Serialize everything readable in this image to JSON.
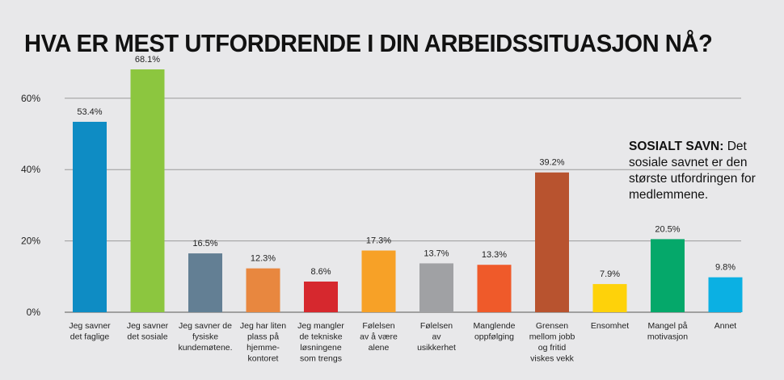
{
  "chart_data": {
    "type": "bar",
    "title": "HVA ER MEST UTFORDRENDE I DIN ARBEIDSSITUASJON NÅ?",
    "xlabel": "",
    "ylabel": "",
    "ylim": [
      0,
      70
    ],
    "yticks": [
      0,
      20,
      40,
      60
    ],
    "ytick_labels": [
      "0%",
      "20%",
      "40%",
      "60%"
    ],
    "grid": true,
    "categories": [
      [
        "Jeg savner",
        "det faglige"
      ],
      [
        "Jeg savner",
        "det sosiale"
      ],
      [
        "Jeg savner de",
        "fysiske",
        "kundemøtene."
      ],
      [
        "Jeg har liten",
        "plass på",
        "hjemme-",
        "kontoret"
      ],
      [
        "Jeg mangler",
        "de tekniske",
        "løsningene",
        "som trengs"
      ],
      [
        "Følelsen",
        "av å være",
        "alene"
      ],
      [
        "Følelsen",
        "av",
        "usikkerhet"
      ],
      [
        "Manglende",
        "oppfølging"
      ],
      [
        "Grensen",
        "mellom jobb",
        "og fritid",
        "viskes vekk"
      ],
      [
        "Ensomhet"
      ],
      [
        "Mangel på",
        "motivasjon"
      ],
      [
        "Annet"
      ]
    ],
    "values": [
      53.4,
      68.1,
      16.5,
      12.3,
      8.6,
      17.3,
      13.7,
      13.3,
      39.2,
      7.9,
      20.5,
      9.8
    ],
    "value_labels": [
      "53.4%",
      "68.1%",
      "16.5%",
      "12.3%",
      "8.6%",
      "17.3%",
      "13.7%",
      "13.3%",
      "39.2%",
      "7.9%",
      "20.5%",
      "9.8%"
    ],
    "colors": [
      "#0e8cc4",
      "#8cc63f",
      "#637f94",
      "#e8873f",
      "#d6282e",
      "#f7a127",
      "#a0a1a4",
      "#ef5a2a",
      "#b8532f",
      "#fed20a",
      "#05a86a",
      "#0bb0e3"
    ]
  },
  "note": {
    "heading": "SOSIALT SAVN:",
    "text": " Det sosiale savnet er den største utfordringen for medlemmene."
  }
}
